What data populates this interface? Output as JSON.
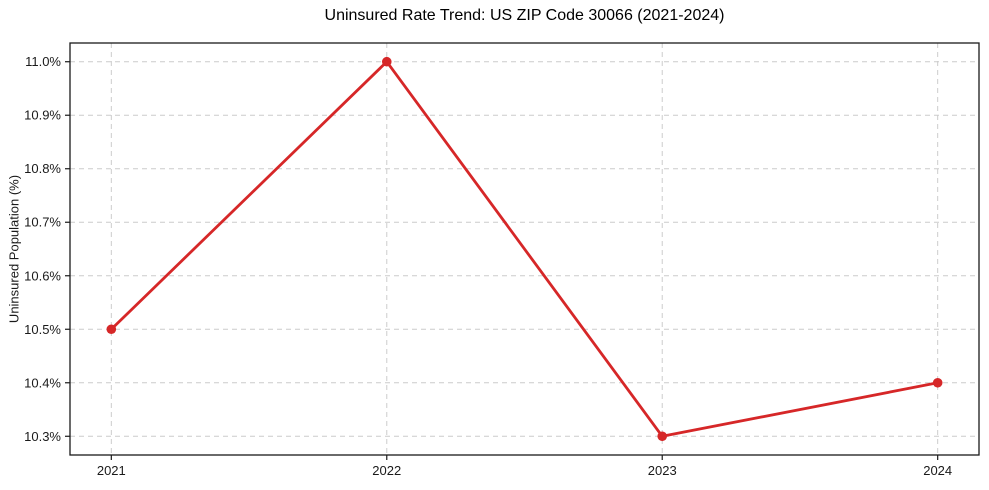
{
  "chart_data": {
    "type": "line",
    "title": "Uninsured Rate Trend: US ZIP Code 30066 (2021-2024)",
    "xlabel": "",
    "ylabel": "Uninsured Population (%)",
    "x": [
      2021,
      2022,
      2023,
      2024
    ],
    "x_tick_labels": [
      "2021",
      "2022",
      "2023",
      "2024"
    ],
    "values": [
      10.5,
      11.0,
      10.3,
      10.4
    ],
    "y_ticks": [
      10.3,
      10.4,
      10.5,
      10.6,
      10.7,
      10.8,
      10.9,
      11.0
    ],
    "y_tick_labels": [
      "10.3%",
      "10.4%",
      "10.5%",
      "10.6%",
      "10.7%",
      "10.8%",
      "10.9%",
      "11.0%"
    ],
    "xlim": [
      2020.85,
      2024.15
    ],
    "ylim": [
      10.265,
      11.035
    ],
    "grid": true,
    "grid_style": "dashed",
    "line_color": "#d62728",
    "marker_color": "#d62728",
    "grid_color": "#cccccc",
    "spine_color": "#1a1a1a",
    "tick_label_color": "#1a1a1a",
    "title_color": "#000000"
  }
}
